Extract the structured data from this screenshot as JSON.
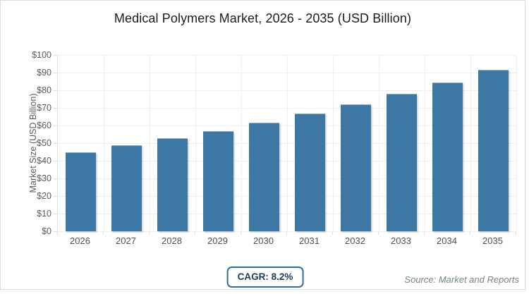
{
  "chart_data": {
    "type": "bar",
    "title": "Medical Polymers Market, 2026 - 2035 (USD Billion)",
    "xlabel": "",
    "ylabel": "Market Size (USD Billion)",
    "categories": [
      "2026",
      "2027",
      "2028",
      "2029",
      "2030",
      "2031",
      "2032",
      "2033",
      "2034",
      "2035"
    ],
    "series": [
      {
        "name": "Market Size (USD Billion)",
        "values": [
          45.0,
          48.7,
          52.7,
          57.0,
          61.7,
          66.7,
          72.2,
          78.1,
          84.5,
          91.5
        ]
      }
    ],
    "ylim": [
      0,
      100
    ],
    "y_ticks": [
      0,
      10,
      20,
      30,
      40,
      50,
      60,
      70,
      80,
      90,
      100
    ],
    "y_tick_labels": [
      "$0",
      "$10",
      "$20",
      "$30",
      "$40",
      "$50",
      "$60",
      "$70",
      "$80",
      "$90",
      "$100"
    ],
    "grid": true,
    "legend_position": "none"
  },
  "footer": {
    "cagr_label": "CAGR: 8.2%",
    "source": "Source: Market and Reports"
  },
  "colors": {
    "bar": "#3d77a3",
    "grid": "#efefef",
    "axis_line": "#e3e3e3",
    "tick": "#d9d9d9",
    "title_text": "#1a1a1a",
    "axis_text": "#595959",
    "axis_text2": "#4f4f4f",
    "badge_border": "#2e6ca4",
    "badge_text": "#1b3a5c",
    "source_text": "#75848c",
    "card_border": "#dcdcdc"
  }
}
